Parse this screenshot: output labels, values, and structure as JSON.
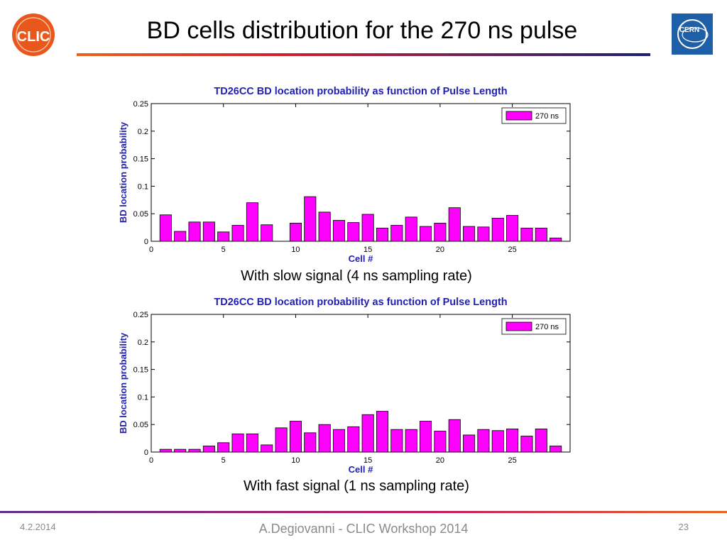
{
  "slide": {
    "title": "BD cells distribution for the 270 ns pulse",
    "captions": [
      "With slow signal (4 ns sampling rate)",
      "With fast signal (1 ns sampling rate)"
    ],
    "footer": {
      "date": "4.2.2014",
      "center": "A.Degiovanni - CLIC Workshop 2014",
      "page": "23"
    },
    "logos": {
      "left": "CLIC",
      "right": "CERN"
    }
  },
  "colors": {
    "bar": "#ff00ff",
    "title_text": "#1f1fb4",
    "axis": "#000000"
  },
  "chart_data": [
    {
      "type": "bar",
      "title": "TD26CC BD location probability as function of Pulse Length",
      "xlabel": "Cell #",
      "ylabel": "BD location probability",
      "xlim": [
        0,
        29
      ],
      "ylim": [
        0,
        0.25
      ],
      "xticks": [
        0,
        5,
        10,
        15,
        20,
        25
      ],
      "xtick_labels": [
        "0",
        "5",
        "10",
        "15",
        "20",
        "25"
      ],
      "yticks": [
        0,
        0.05,
        0.1,
        0.15,
        0.2,
        0.25
      ],
      "ytick_labels": [
        "0",
        "0.05",
        "0.1",
        "0.15",
        "0.2",
        "0.25"
      ],
      "legend_position": "top-right",
      "series": [
        {
          "name": "270 ns",
          "x": [
            1,
            2,
            3,
            4,
            5,
            6,
            7,
            8,
            9,
            10,
            11,
            12,
            13,
            14,
            15,
            16,
            17,
            18,
            19,
            20,
            21,
            22,
            23,
            24,
            25,
            26,
            27,
            28
          ],
          "values": [
            0.048,
            0.018,
            0.035,
            0.035,
            0.017,
            0.029,
            0.07,
            0.03,
            0,
            0.033,
            0.081,
            0.053,
            0.038,
            0.034,
            0.049,
            0.024,
            0.029,
            0.044,
            0.027,
            0.033,
            0.061,
            0.027,
            0.026,
            0.042,
            0.047,
            0.024,
            0.024,
            0.006
          ]
        }
      ]
    },
    {
      "type": "bar",
      "title": "TD26CC BD location probability as function of Pulse Length",
      "xlabel": "Cell #",
      "ylabel": "BD location probability",
      "xlim": [
        0,
        29
      ],
      "ylim": [
        0,
        0.25
      ],
      "xticks": [
        0,
        5,
        10,
        15,
        20,
        25
      ],
      "xtick_labels": [
        "0",
        "5",
        "10",
        "15",
        "20",
        "25"
      ],
      "yticks": [
        0,
        0.05,
        0.1,
        0.15,
        0.2,
        0.25
      ],
      "ytick_labels": [
        "0",
        "0.05",
        "0.1",
        "0.15",
        "0.2",
        "0.25"
      ],
      "legend_position": "top-right",
      "series": [
        {
          "name": "270 ns",
          "x": [
            1,
            2,
            3,
            4,
            5,
            6,
            7,
            8,
            9,
            10,
            11,
            12,
            13,
            14,
            15,
            16,
            17,
            18,
            19,
            20,
            21,
            22,
            23,
            24,
            25,
            26,
            27,
            28
          ],
          "values": [
            0.005,
            0.005,
            0.005,
            0.011,
            0.017,
            0.033,
            0.033,
            0.013,
            0.044,
            0.056,
            0.035,
            0.05,
            0.041,
            0.046,
            0.068,
            0.074,
            0.041,
            0.041,
            0.056,
            0.038,
            0.059,
            0.031,
            0.041,
            0.039,
            0.042,
            0.029,
            0.042,
            0.011
          ]
        }
      ]
    }
  ]
}
